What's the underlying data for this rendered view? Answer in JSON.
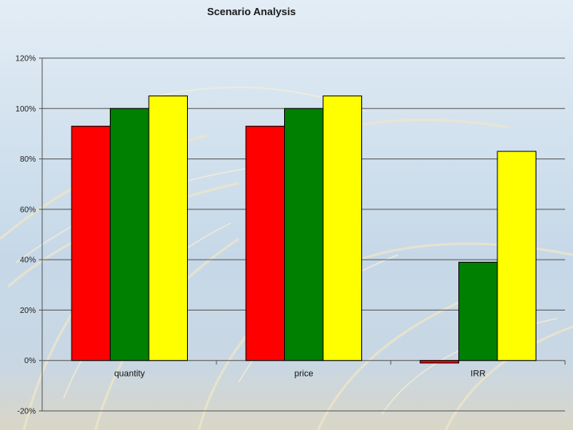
{
  "chart_data": {
    "type": "bar",
    "title": "Scenario Analysis",
    "xlabel": "",
    "ylabel": "",
    "categories": [
      "quantity",
      "price",
      "IRR"
    ],
    "series": [
      {
        "values": [
          93,
          93,
          -1
        ],
        "color": "#ff0000"
      },
      {
        "values": [
          100,
          100,
          39
        ],
        "color": "#008000"
      },
      {
        "values": [
          105,
          105,
          83
        ],
        "color": "#ffff00"
      }
    ],
    "ylim": [
      -20,
      120
    ],
    "yticks": [
      120,
      100,
      80,
      60,
      40,
      20,
      0,
      -20
    ],
    "ytick_labels": [
      "120%",
      "100%",
      "80%",
      "60%",
      "40%",
      "20%",
      "0%",
      "-20%"
    ],
    "grid": true,
    "legend": "none",
    "bar_outline": "#000000",
    "gridline_color": "#555555"
  }
}
